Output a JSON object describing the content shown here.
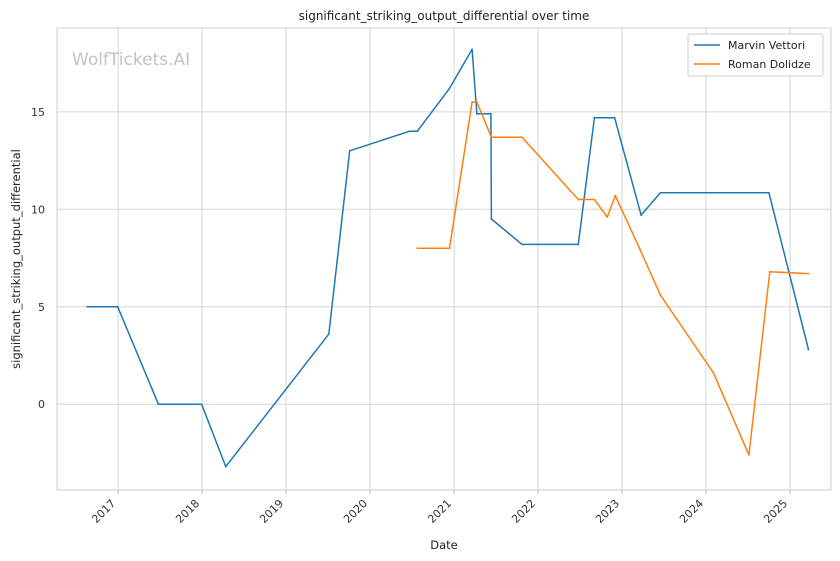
{
  "watermark": "WolfTickets.AI",
  "chart_data": {
    "type": "line",
    "title": "significant_striking_output_differential over time",
    "xlabel": "Date",
    "ylabel": "significant_striking_output_differential",
    "x_is_date": true,
    "xlim": [
      "2016-04-10",
      "2025-06-28"
    ],
    "ylim": [
      -4.4,
      19.3
    ],
    "x_ticks": [
      "2017",
      "2018",
      "2019",
      "2020",
      "2021",
      "2022",
      "2023",
      "2024",
      "2025"
    ],
    "y_ticks": [
      0,
      5,
      10,
      15
    ],
    "grid": true,
    "legend_position": "top-right",
    "series": [
      {
        "name": "Marvin Vettori",
        "color": "#1f77b4",
        "points": [
          [
            "2016-08-20",
            5.0
          ],
          [
            "2016-12-30",
            5.0
          ],
          [
            "2017-06-25",
            0.0
          ],
          [
            "2017-12-30",
            0.0
          ],
          [
            "2018-04-14",
            -3.2
          ],
          [
            "2019-07-06",
            3.6
          ],
          [
            "2019-10-05",
            13.0
          ],
          [
            "2020-06-20",
            14.0
          ],
          [
            "2020-07-25",
            14.0
          ],
          [
            "2020-12-12",
            16.2
          ],
          [
            "2021-03-20",
            18.2
          ],
          [
            "2021-04-10",
            14.9
          ],
          [
            "2021-06-10",
            14.9
          ],
          [
            "2021-06-12",
            9.5
          ],
          [
            "2021-10-23",
            8.2
          ],
          [
            "2022-06-25",
            8.2
          ],
          [
            "2022-09-03",
            14.7
          ],
          [
            "2022-11-30",
            14.7
          ],
          [
            "2023-03-25",
            9.7
          ],
          [
            "2023-06-17",
            10.85
          ],
          [
            "2024-10-01",
            10.85
          ],
          [
            "2025-03-22",
            2.8
          ]
        ]
      },
      {
        "name": "Roman Dolidze",
        "color": "#ff7f0e",
        "points": [
          [
            "2020-07-25",
            8.0
          ],
          [
            "2020-12-12",
            8.0
          ],
          [
            "2021-03-20",
            15.5
          ],
          [
            "2021-04-10",
            15.5
          ],
          [
            "2021-06-12",
            13.7
          ],
          [
            "2021-10-23",
            13.7
          ],
          [
            "2022-06-25",
            10.5
          ],
          [
            "2022-09-03",
            10.5
          ],
          [
            "2022-10-29",
            9.6
          ],
          [
            "2022-12-03",
            10.7
          ],
          [
            "2023-03-18",
            8.0
          ],
          [
            "2023-06-17",
            5.6
          ],
          [
            "2024-02-03",
            1.6
          ],
          [
            "2024-07-06",
            -2.6
          ],
          [
            "2024-10-05",
            6.8
          ],
          [
            "2025-03-22",
            6.7
          ]
        ]
      }
    ]
  }
}
